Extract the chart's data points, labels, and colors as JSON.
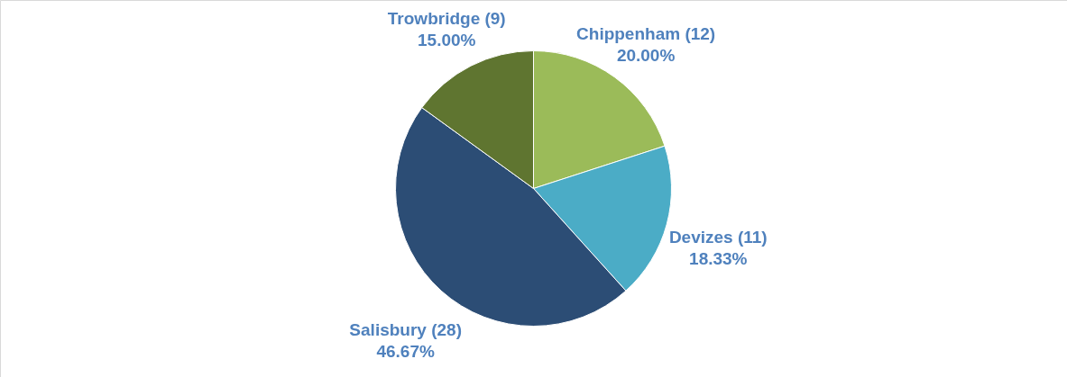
{
  "chart_data": {
    "type": "pie",
    "categories": [
      "Chippenham (12)",
      "Devizes (11)",
      "Salisbury (28)",
      "Trowbridge (9)"
    ],
    "values": [
      20.0,
      18.33,
      46.67,
      15.0
    ],
    "value_labels": [
      "20.00%",
      "18.33%",
      "46.67%",
      "15.00%"
    ],
    "colors": [
      "#9bbb59",
      "#4bacc6",
      "#2c4d75",
      "#5f7530"
    ],
    "legend": false
  }
}
